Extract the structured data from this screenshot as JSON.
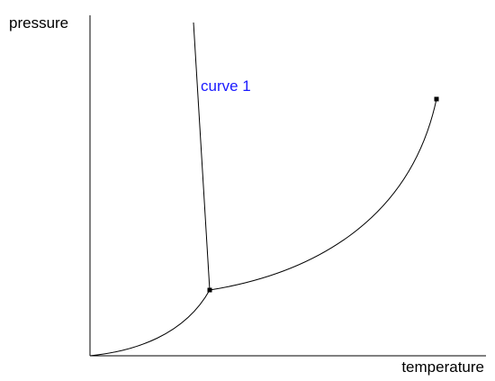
{
  "y_axis_label": "pressure",
  "x_axis_label": "temperature",
  "annotation": "curve 1"
}
